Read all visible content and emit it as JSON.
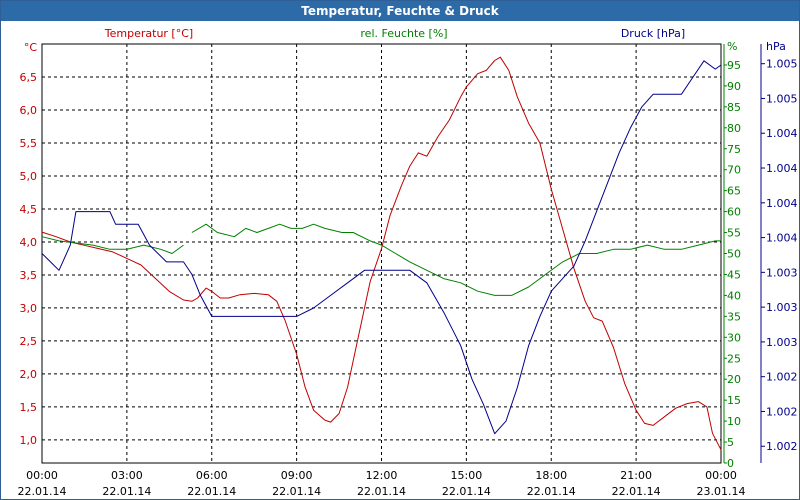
{
  "window": {
    "title": "Temperatur, Feuchte & Druck"
  },
  "colors": {
    "temperature": "#c00000",
    "humidity": "#008000",
    "pressure": "#00008b",
    "grid": "#000000",
    "titlebar": "#2c6aa8"
  },
  "chart_data": {
    "type": "line",
    "title": "Temperatur, Feuchte & Druck",
    "x_ticks": [
      {
        "h": 0,
        "time": "00:00",
        "date": "22.01.14"
      },
      {
        "h": 3,
        "time": "03:00",
        "date": "22.01.14"
      },
      {
        "h": 6,
        "time": "06:00",
        "date": "22.01.14"
      },
      {
        "h": 9,
        "time": "09:00",
        "date": "22.01.14"
      },
      {
        "h": 12,
        "time": "12:00",
        "date": "22.01.14"
      },
      {
        "h": 15,
        "time": "15:00",
        "date": "22.01.14"
      },
      {
        "h": 18,
        "time": "18:00",
        "date": "22.01.14"
      },
      {
        "h": 21,
        "time": "21:00",
        "date": "22.01.14"
      },
      {
        "h": 24,
        "time": "00:00",
        "date": "23.01.14"
      }
    ],
    "xlim": [
      0,
      24
    ],
    "axes": {
      "temperature": {
        "unit": "°C",
        "title": "Temperatur [°C]",
        "ylim": [
          0.65,
          7.0
        ],
        "ticks": [
          {
            "v": 1.0,
            "label": "1,0"
          },
          {
            "v": 1.5,
            "label": "1,5"
          },
          {
            "v": 2.0,
            "label": "2,0"
          },
          {
            "v": 2.5,
            "label": "2,5"
          },
          {
            "v": 3.0,
            "label": "3,0"
          },
          {
            "v": 3.5,
            "label": "3,5"
          },
          {
            "v": 4.0,
            "label": "4,0"
          },
          {
            "v": 4.5,
            "label": "4,5"
          },
          {
            "v": 5.0,
            "label": "5,0"
          },
          {
            "v": 5.5,
            "label": "5,5"
          },
          {
            "v": 6.0,
            "label": "6,0"
          },
          {
            "v": 6.5,
            "label": "6,5"
          }
        ]
      },
      "humidity": {
        "unit": "%",
        "title": "rel. Feuchte [%]",
        "ylim": [
          0,
          100
        ],
        "ticks": [
          {
            "v": 0,
            "label": "0"
          },
          {
            "v": 5,
            "label": "5"
          },
          {
            "v": 10,
            "label": "10"
          },
          {
            "v": 15,
            "label": "15"
          },
          {
            "v": 20,
            "label": "20"
          },
          {
            "v": 25,
            "label": "25"
          },
          {
            "v": 30,
            "label": "30"
          },
          {
            "v": 35,
            "label": "35"
          },
          {
            "v": 40,
            "label": "40"
          },
          {
            "v": 45,
            "label": "45"
          },
          {
            "v": 50,
            "label": "50"
          },
          {
            "v": 55,
            "label": "55"
          },
          {
            "v": 60,
            "label": "60"
          },
          {
            "v": 65,
            "label": "65"
          },
          {
            "v": 70,
            "label": "70"
          },
          {
            "v": 75,
            "label": "75"
          },
          {
            "v": 80,
            "label": "80"
          },
          {
            "v": 85,
            "label": "85"
          },
          {
            "v": 90,
            "label": "90"
          },
          {
            "v": 95,
            "label": "95"
          }
        ]
      },
      "pressure": {
        "unit": "hPa",
        "title": "Druck [hPa]",
        "ylim": [
          0,
          100
        ],
        "ticks": [
          {
            "v": 4,
            "label": "1.002"
          },
          {
            "v": 12.3,
            "label": "1.002"
          },
          {
            "v": 20.6,
            "label": "1.002"
          },
          {
            "v": 28.9,
            "label": "1.003"
          },
          {
            "v": 37.2,
            "label": "1.003"
          },
          {
            "v": 45.5,
            "label": "1.003"
          },
          {
            "v": 53.8,
            "label": "1.004"
          },
          {
            "v": 62.1,
            "label": "1.004"
          },
          {
            "v": 70.4,
            "label": "1.004"
          },
          {
            "v": 78.7,
            "label": "1.004"
          },
          {
            "v": 87.0,
            "label": "1.005"
          },
          {
            "v": 95.3,
            "label": "1.005"
          }
        ]
      }
    },
    "series": [
      {
        "name": "Temperatur",
        "axis": "temperature",
        "points": [
          [
            0,
            4.15
          ],
          [
            0.5,
            4.08
          ],
          [
            1,
            4.0
          ],
          [
            1.5,
            3.95
          ],
          [
            2,
            3.9
          ],
          [
            2.5,
            3.85
          ],
          [
            3,
            3.75
          ],
          [
            3.5,
            3.65
          ],
          [
            4,
            3.45
          ],
          [
            4.5,
            3.25
          ],
          [
            5,
            3.12
          ],
          [
            5.3,
            3.1
          ],
          [
            5.5,
            3.15
          ],
          [
            5.8,
            3.3
          ],
          [
            6,
            3.25
          ],
          [
            6.3,
            3.15
          ],
          [
            6.6,
            3.15
          ],
          [
            7,
            3.2
          ],
          [
            7.5,
            3.22
          ],
          [
            8,
            3.2
          ],
          [
            8.3,
            3.1
          ],
          [
            8.6,
            2.8
          ],
          [
            9,
            2.3
          ],
          [
            9.3,
            1.8
          ],
          [
            9.6,
            1.45
          ],
          [
            10,
            1.3
          ],
          [
            10.2,
            1.27
          ],
          [
            10.5,
            1.4
          ],
          [
            10.8,
            1.8
          ],
          [
            11,
            2.2
          ],
          [
            11.3,
            2.8
          ],
          [
            11.6,
            3.4
          ],
          [
            12,
            3.9
          ],
          [
            12.3,
            4.4
          ],
          [
            12.7,
            4.85
          ],
          [
            13,
            5.15
          ],
          [
            13.3,
            5.35
          ],
          [
            13.6,
            5.3
          ],
          [
            14,
            5.6
          ],
          [
            14.4,
            5.85
          ],
          [
            14.8,
            6.2
          ],
          [
            15,
            6.35
          ],
          [
            15.4,
            6.55
          ],
          [
            15.7,
            6.6
          ],
          [
            16,
            6.75
          ],
          [
            16.2,
            6.8
          ],
          [
            16.5,
            6.6
          ],
          [
            16.8,
            6.2
          ],
          [
            17.2,
            5.8
          ],
          [
            17.6,
            5.5
          ],
          [
            18,
            4.8
          ],
          [
            18.4,
            4.2
          ],
          [
            18.8,
            3.6
          ],
          [
            19.2,
            3.1
          ],
          [
            19.5,
            2.85
          ],
          [
            19.8,
            2.8
          ],
          [
            20.2,
            2.4
          ],
          [
            20.6,
            1.85
          ],
          [
            21,
            1.45
          ],
          [
            21.3,
            1.25
          ],
          [
            21.6,
            1.22
          ],
          [
            22,
            1.35
          ],
          [
            22.4,
            1.48
          ],
          [
            22.8,
            1.55
          ],
          [
            23.2,
            1.58
          ],
          [
            23.5,
            1.5
          ],
          [
            23.7,
            1.1
          ],
          [
            24,
            0.85
          ]
        ]
      },
      {
        "name": "rel. Feuchte",
        "axis": "humidity",
        "segments": [
          [
            [
              0,
              54
            ],
            [
              0.6,
              53
            ],
            [
              1.2,
              52.5
            ],
            [
              1.8,
              52
            ],
            [
              2.4,
              51
            ],
            [
              3,
              51
            ],
            [
              3.6,
              52
            ],
            [
              4.2,
              51
            ],
            [
              4.6,
              50
            ],
            [
              5,
              52
            ]
          ],
          [
            [
              5.3,
              55
            ],
            [
              5.8,
              57
            ],
            [
              6.2,
              55
            ],
            [
              6.8,
              54
            ],
            [
              7.2,
              56
            ],
            [
              7.6,
              55
            ],
            [
              8,
              56
            ],
            [
              8.4,
              57
            ],
            [
              8.8,
              56
            ],
            [
              9.2,
              56
            ],
            [
              9.6,
              57
            ],
            [
              10,
              56
            ],
            [
              10.6,
              55
            ],
            [
              11,
              55
            ],
            [
              11.6,
              53
            ],
            [
              12,
              52
            ],
            [
              12.5,
              50
            ],
            [
              13,
              48
            ],
            [
              13.6,
              46
            ],
            [
              14.2,
              44
            ],
            [
              14.8,
              43
            ],
            [
              15.4,
              41
            ],
            [
              16,
              40
            ],
            [
              16.6,
              40
            ],
            [
              17.2,
              42
            ],
            [
              17.8,
              45
            ],
            [
              18.4,
              48
            ],
            [
              19,
              50
            ],
            [
              19.6,
              50
            ],
            [
              20.2,
              51
            ],
            [
              20.8,
              51
            ],
            [
              21.4,
              52
            ],
            [
              22,
              51
            ],
            [
              22.6,
              51
            ],
            [
              23.2,
              52
            ],
            [
              23.8,
              53
            ],
            [
              24,
              53
            ]
          ]
        ]
      },
      {
        "name": "Druck",
        "axis": "pressure",
        "points": [
          [
            0,
            50
          ],
          [
            0.3,
            48
          ],
          [
            0.6,
            46
          ],
          [
            1,
            52
          ],
          [
            1.2,
            60
          ],
          [
            2.4,
            60
          ],
          [
            2.6,
            57
          ],
          [
            3.4,
            57
          ],
          [
            3.8,
            52
          ],
          [
            4.4,
            48
          ],
          [
            5,
            48
          ],
          [
            5.3,
            45
          ],
          [
            5.6,
            40
          ],
          [
            6,
            35
          ],
          [
            6.4,
            35
          ],
          [
            6.8,
            35
          ],
          [
            7.2,
            35
          ],
          [
            7.6,
            35
          ],
          [
            8,
            35
          ],
          [
            9,
            35
          ],
          [
            9.6,
            37
          ],
          [
            10.2,
            40
          ],
          [
            10.8,
            43
          ],
          [
            11.4,
            46
          ],
          [
            12,
            46
          ],
          [
            13,
            46
          ],
          [
            13.6,
            43
          ],
          [
            14.2,
            36
          ],
          [
            14.8,
            28
          ],
          [
            15.2,
            20
          ],
          [
            15.6,
            14
          ],
          [
            16,
            7
          ],
          [
            16.4,
            10
          ],
          [
            16.8,
            18
          ],
          [
            17.2,
            28
          ],
          [
            17.6,
            35
          ],
          [
            18,
            41
          ],
          [
            18.4,
            44
          ],
          [
            18.8,
            47
          ],
          [
            19.2,
            53
          ],
          [
            19.6,
            60
          ],
          [
            20,
            67
          ],
          [
            20.4,
            74
          ],
          [
            20.8,
            80
          ],
          [
            21.2,
            85
          ],
          [
            21.6,
            88
          ],
          [
            22,
            88
          ],
          [
            22.6,
            88
          ],
          [
            23,
            92
          ],
          [
            23.4,
            96
          ],
          [
            23.8,
            94
          ],
          [
            24,
            95
          ]
        ]
      }
    ]
  }
}
